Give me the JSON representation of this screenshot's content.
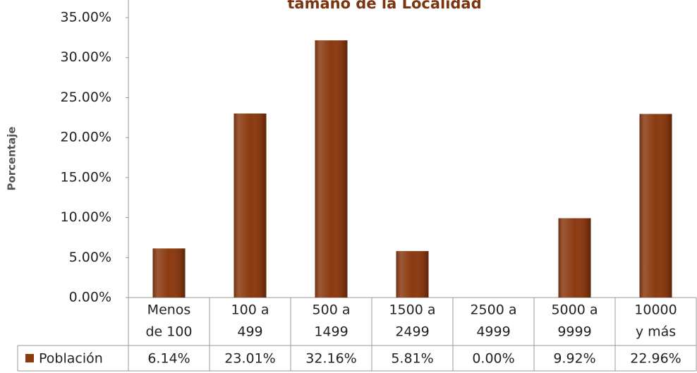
{
  "chart_data": {
    "type": "bar",
    "title": "tamaño de la Localidad",
    "y_label": "Porcentaje",
    "categories": [
      [
        "Menos",
        "de 100"
      ],
      [
        "100 a",
        "499"
      ],
      [
        "500 a",
        "1499"
      ],
      [
        "1500 a",
        "2499"
      ],
      [
        "2500 a",
        "4999"
      ],
      [
        "5000 a",
        "9999"
      ],
      [
        "10000",
        "y más"
      ]
    ],
    "series": [
      {
        "name": "Población",
        "color": "#8b3a10",
        "values": [
          6.14,
          23.01,
          32.16,
          5.81,
          0,
          9.92,
          22.96
        ],
        "value_labels": [
          "6.14%",
          "23.01%",
          "32.16%",
          "5.81%",
          "0.00%",
          "9.92%",
          "22.96%"
        ]
      }
    ],
    "ylim": [
      0,
      35
    ],
    "yticks": [
      {
        "value": 0,
        "label": "0.00%"
      },
      {
        "value": 5,
        "label": "5.00%"
      },
      {
        "value": 10,
        "label": "10.00%"
      },
      {
        "value": 15,
        "label": "15.00%"
      },
      {
        "value": 20,
        "label": "20.00%"
      },
      {
        "value": 25,
        "label": "25.00%"
      },
      {
        "value": 30,
        "label": "30.00%"
      },
      {
        "value": 35,
        "label": "35.00%"
      }
    ],
    "grid": false
  }
}
